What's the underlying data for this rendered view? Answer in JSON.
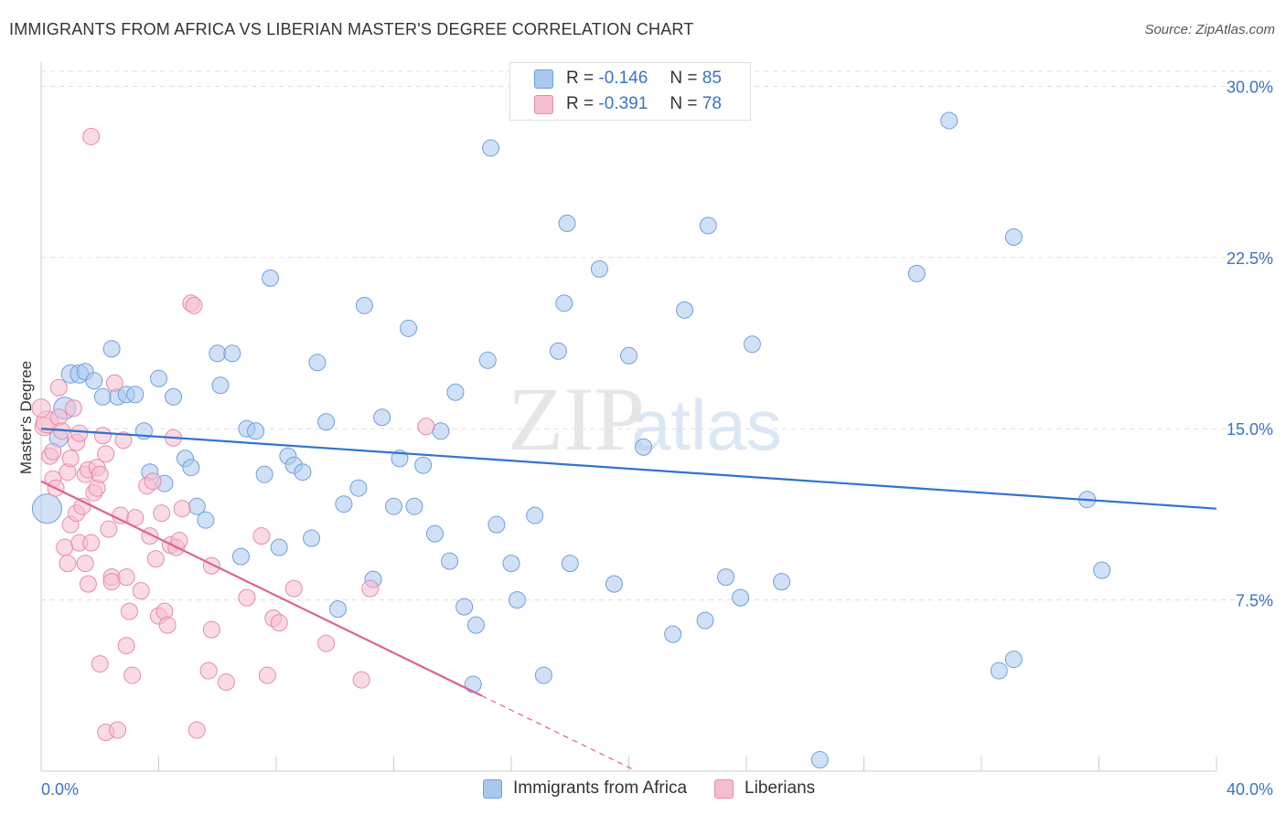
{
  "title": "IMMIGRANTS FROM AFRICA VS LIBERIAN MASTER'S DEGREE CORRELATION CHART",
  "source": "Source: ZipAtlas.com",
  "watermark": {
    "zip": "ZIP",
    "atlas": "atlas"
  },
  "legend": {
    "r_label": "R =",
    "n_label": "N =",
    "series": [
      {
        "name": "Immigrants from Africa",
        "r": "-0.146",
        "n": "85",
        "color": "#a9c8f0",
        "stroke": "#6f9fdc"
      },
      {
        "name": "Liberians",
        "r": "-0.391",
        "n": "78",
        "color": "#f6bdd0",
        "stroke": "#e78aaa"
      }
    ]
  },
  "chart_data": {
    "type": "scatter",
    "title": "IMMIGRANTS FROM AFRICA VS LIBERIAN MASTER'S DEGREE CORRELATION CHART",
    "xlabel": "",
    "ylabel": "Master's Degree",
    "xlim": [
      0,
      40
    ],
    "ylim": [
      0,
      30.5
    ],
    "x_tick_labels": [
      "0.0%",
      "40.0%"
    ],
    "y_ticks": [
      7.5,
      15.0,
      22.5,
      30.0
    ],
    "y_tick_labels": [
      "7.5%",
      "15.0%",
      "22.5%",
      "30.0%"
    ],
    "grid": true,
    "series": [
      {
        "name": "Immigrants from Africa",
        "color": "#a9c8f0",
        "stroke": "#6f9fdc",
        "trend": {
          "x0": 0,
          "y0": 15.0,
          "x1": 40,
          "y1": 11.5,
          "color": "#2f73d0"
        },
        "points": [
          [
            0.2,
            11.5,
            16
          ],
          [
            0.6,
            14.6,
            10
          ],
          [
            0.8,
            15.9,
            12
          ],
          [
            1.0,
            17.4,
            10
          ],
          [
            1.3,
            17.4,
            10
          ],
          [
            1.5,
            17.5,
            9
          ],
          [
            1.8,
            17.1,
            9
          ],
          [
            2.1,
            16.4,
            9
          ],
          [
            2.4,
            18.5,
            9
          ],
          [
            2.6,
            16.4,
            9
          ],
          [
            2.9,
            16.5,
            9
          ],
          [
            3.2,
            16.5,
            9
          ],
          [
            3.5,
            14.9,
            9
          ],
          [
            3.7,
            13.1,
            9
          ],
          [
            4.0,
            17.2,
            9
          ],
          [
            4.2,
            12.6,
            9
          ],
          [
            4.5,
            16.4,
            9
          ],
          [
            4.9,
            13.7,
            9
          ],
          [
            5.1,
            13.3,
            9
          ],
          [
            5.3,
            11.6,
            9
          ],
          [
            5.6,
            11.0,
            9
          ],
          [
            6.1,
            16.9,
            9
          ],
          [
            6.0,
            18.3,
            9
          ],
          [
            6.5,
            18.3,
            9
          ],
          [
            6.8,
            9.4,
            9
          ],
          [
            7.0,
            15.0,
            9
          ],
          [
            7.3,
            14.9,
            9
          ],
          [
            7.6,
            13.0,
            9
          ],
          [
            7.8,
            21.6,
            9
          ],
          [
            8.1,
            9.8,
            9
          ],
          [
            8.4,
            13.8,
            9
          ],
          [
            8.6,
            13.4,
            9
          ],
          [
            8.9,
            13.1,
            9
          ],
          [
            9.2,
            10.2,
            9
          ],
          [
            9.4,
            17.9,
            9
          ],
          [
            9.7,
            15.3,
            9
          ],
          [
            10.1,
            7.1,
            9
          ],
          [
            10.3,
            11.7,
            9
          ],
          [
            10.8,
            12.4,
            9
          ],
          [
            11.0,
            20.4,
            9
          ],
          [
            11.3,
            8.4,
            9
          ],
          [
            11.6,
            15.5,
            9
          ],
          [
            12.0,
            11.6,
            9
          ],
          [
            12.2,
            13.7,
            9
          ],
          [
            12.5,
            19.4,
            9
          ],
          [
            12.7,
            11.6,
            9
          ],
          [
            13.0,
            13.4,
            9
          ],
          [
            13.4,
            10.4,
            9
          ],
          [
            13.6,
            14.9,
            9
          ],
          [
            13.9,
            9.2,
            9
          ],
          [
            14.1,
            16.6,
            9
          ],
          [
            14.4,
            7.2,
            9
          ],
          [
            14.8,
            6.4,
            9
          ],
          [
            14.7,
            3.8,
            9
          ],
          [
            15.2,
            18.0,
            9
          ],
          [
            15.3,
            27.3,
            9
          ],
          [
            15.5,
            10.8,
            9
          ],
          [
            16.0,
            9.1,
            9
          ],
          [
            16.2,
            7.5,
            9
          ],
          [
            16.8,
            11.2,
            9
          ],
          [
            17.1,
            4.2,
            9
          ],
          [
            17.6,
            18.4,
            9
          ],
          [
            17.8,
            20.5,
            9
          ],
          [
            17.9,
            24.0,
            9
          ],
          [
            18.0,
            9.1,
            9
          ],
          [
            19.0,
            22.0,
            9
          ],
          [
            19.5,
            8.2,
            9
          ],
          [
            20.0,
            18.2,
            9
          ],
          [
            20.5,
            14.2,
            9
          ],
          [
            21.5,
            6.0,
            9
          ],
          [
            21.9,
            20.2,
            9
          ],
          [
            22.6,
            6.6,
            9
          ],
          [
            22.7,
            23.9,
            9
          ],
          [
            23.3,
            8.5,
            9
          ],
          [
            23.8,
            7.6,
            9
          ],
          [
            24.2,
            18.7,
            9
          ],
          [
            25.2,
            8.3,
            9
          ],
          [
            26.5,
            0.5,
            9
          ],
          [
            29.8,
            21.8,
            9
          ],
          [
            30.9,
            28.5,
            9
          ],
          [
            32.6,
            4.4,
            9
          ],
          [
            33.1,
            4.9,
            9
          ],
          [
            33.1,
            23.4,
            9
          ],
          [
            35.6,
            11.9,
            9
          ],
          [
            36.1,
            8.8,
            9
          ]
        ]
      },
      {
        "name": "Liberians",
        "color": "#f6bdd0",
        "stroke": "#e78aaa",
        "trend": {
          "x0": 0,
          "y0": 12.7,
          "x1": 15.0,
          "y1": 3.3,
          "x_ext": 20.2,
          "color": "#e06090"
        },
        "points": [
          [
            0.1,
            15.1,
            10
          ],
          [
            0.2,
            15.3,
            12
          ],
          [
            0.3,
            13.8,
            9
          ],
          [
            0.4,
            14.0,
            9
          ],
          [
            0.4,
            12.8,
            9
          ],
          [
            0.5,
            12.4,
            9
          ],
          [
            0.6,
            15.5,
            9
          ],
          [
            0.6,
            16.8,
            9
          ],
          [
            0.7,
            14.9,
            9
          ],
          [
            0.8,
            9.8,
            9
          ],
          [
            0.9,
            13.1,
            9
          ],
          [
            0.9,
            9.1,
            9
          ],
          [
            1.0,
            13.7,
            9
          ],
          [
            1.0,
            10.8,
            9
          ],
          [
            1.1,
            15.9,
            9
          ],
          [
            1.2,
            14.4,
            9
          ],
          [
            1.2,
            11.3,
            9
          ],
          [
            1.3,
            14.8,
            9
          ],
          [
            1.3,
            10.0,
            9
          ],
          [
            1.4,
            11.6,
            9
          ],
          [
            1.5,
            13.0,
            9
          ],
          [
            1.5,
            9.1,
            9
          ],
          [
            1.6,
            8.2,
            9
          ],
          [
            1.6,
            13.2,
            9
          ],
          [
            1.7,
            10.0,
            9
          ],
          [
            1.7,
            27.8,
            9
          ],
          [
            1.8,
            12.2,
            9
          ],
          [
            1.9,
            13.3,
            9
          ],
          [
            1.9,
            12.4,
            9
          ],
          [
            2.0,
            4.7,
            9
          ],
          [
            2.0,
            13.0,
            9
          ],
          [
            2.1,
            14.7,
            9
          ],
          [
            2.2,
            13.9,
            9
          ],
          [
            2.2,
            1.7,
            9
          ],
          [
            2.3,
            10.6,
            9
          ],
          [
            2.4,
            8.5,
            9
          ],
          [
            2.4,
            8.3,
            9
          ],
          [
            2.5,
            17.0,
            9
          ],
          [
            2.6,
            1.8,
            9
          ],
          [
            2.7,
            11.2,
            9
          ],
          [
            2.8,
            14.5,
            9
          ],
          [
            2.9,
            5.5,
            9
          ],
          [
            2.9,
            8.5,
            9
          ],
          [
            3.0,
            7.0,
            9
          ],
          [
            3.1,
            4.2,
            9
          ],
          [
            3.2,
            11.1,
            9
          ],
          [
            3.4,
            7.9,
            9
          ],
          [
            3.6,
            12.5,
            9
          ],
          [
            3.7,
            10.3,
            9
          ],
          [
            3.8,
            12.7,
            9
          ],
          [
            3.9,
            9.3,
            9
          ],
          [
            4.0,
            6.8,
            9
          ],
          [
            4.1,
            11.3,
            9
          ],
          [
            4.2,
            7.0,
            9
          ],
          [
            4.3,
            6.4,
            9
          ],
          [
            4.4,
            9.9,
            9
          ],
          [
            4.5,
            14.6,
            9
          ],
          [
            4.6,
            9.8,
            9
          ],
          [
            4.7,
            10.1,
            9
          ],
          [
            4.8,
            11.5,
            9
          ],
          [
            5.1,
            20.5,
            9
          ],
          [
            5.2,
            20.4,
            9
          ],
          [
            5.3,
            1.8,
            9
          ],
          [
            5.7,
            4.4,
            9
          ],
          [
            5.8,
            6.2,
            9
          ],
          [
            5.8,
            9.0,
            9
          ],
          [
            6.3,
            3.9,
            9
          ],
          [
            7.0,
            7.6,
            9
          ],
          [
            7.5,
            10.3,
            9
          ],
          [
            7.7,
            4.2,
            9
          ],
          [
            7.9,
            6.7,
            9
          ],
          [
            8.1,
            6.5,
            9
          ],
          [
            8.6,
            8.0,
            9
          ],
          [
            9.7,
            5.6,
            9
          ],
          [
            10.9,
            4.0,
            9
          ],
          [
            11.2,
            8.0,
            9
          ],
          [
            13.1,
            15.1,
            9
          ],
          [
            0.0,
            15.9,
            10
          ]
        ]
      }
    ]
  }
}
